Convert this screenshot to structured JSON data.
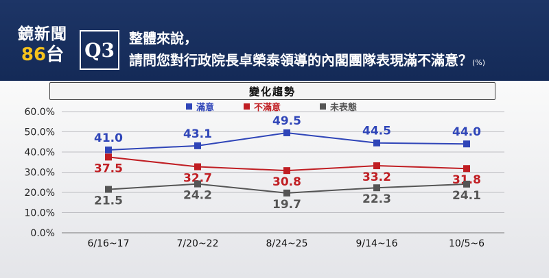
{
  "header": {
    "brand_name": "鏡新聞",
    "brand_channel_num": "86",
    "brand_channel_suffix": "台",
    "question_no": "Q3",
    "question_line1": "整體來說，",
    "question_line2": "請問您對行政院長卓榮泰領導的內閣團隊表現滿不滿意？",
    "question_unit": "(%)"
  },
  "chart_data": {
    "type": "line",
    "title": "變化趨勢",
    "categories": [
      "6/16~17",
      "7/20~22",
      "8/24~25",
      "9/14~16",
      "10/5~6"
    ],
    "ylim": [
      0,
      60
    ],
    "yticks": [
      "0.0%",
      "10.0%",
      "20.0%",
      "30.0%",
      "40.0%",
      "50.0%",
      "60.0%"
    ],
    "grid": true,
    "legend_position": "top-center",
    "series": [
      {
        "name": "滿意",
        "color": "#2f45b8",
        "values": [
          41.0,
          43.1,
          49.5,
          44.5,
          44.0
        ],
        "labels": [
          "41.0",
          "43.1",
          "49.5",
          "44.5",
          "44.0"
        ]
      },
      {
        "name": "不滿意",
        "color": "#c01e23",
        "values": [
          37.5,
          32.7,
          30.8,
          33.2,
          31.8
        ],
        "labels": [
          "37.5",
          "32.7",
          "30.8",
          "33.2",
          "31.8"
        ]
      },
      {
        "name": "未表態",
        "color": "#555555",
        "values": [
          21.5,
          24.2,
          19.7,
          22.3,
          24.1
        ],
        "labels": [
          "21.5",
          "24.2",
          "19.7",
          "22.3",
          "24.1"
        ]
      }
    ]
  }
}
